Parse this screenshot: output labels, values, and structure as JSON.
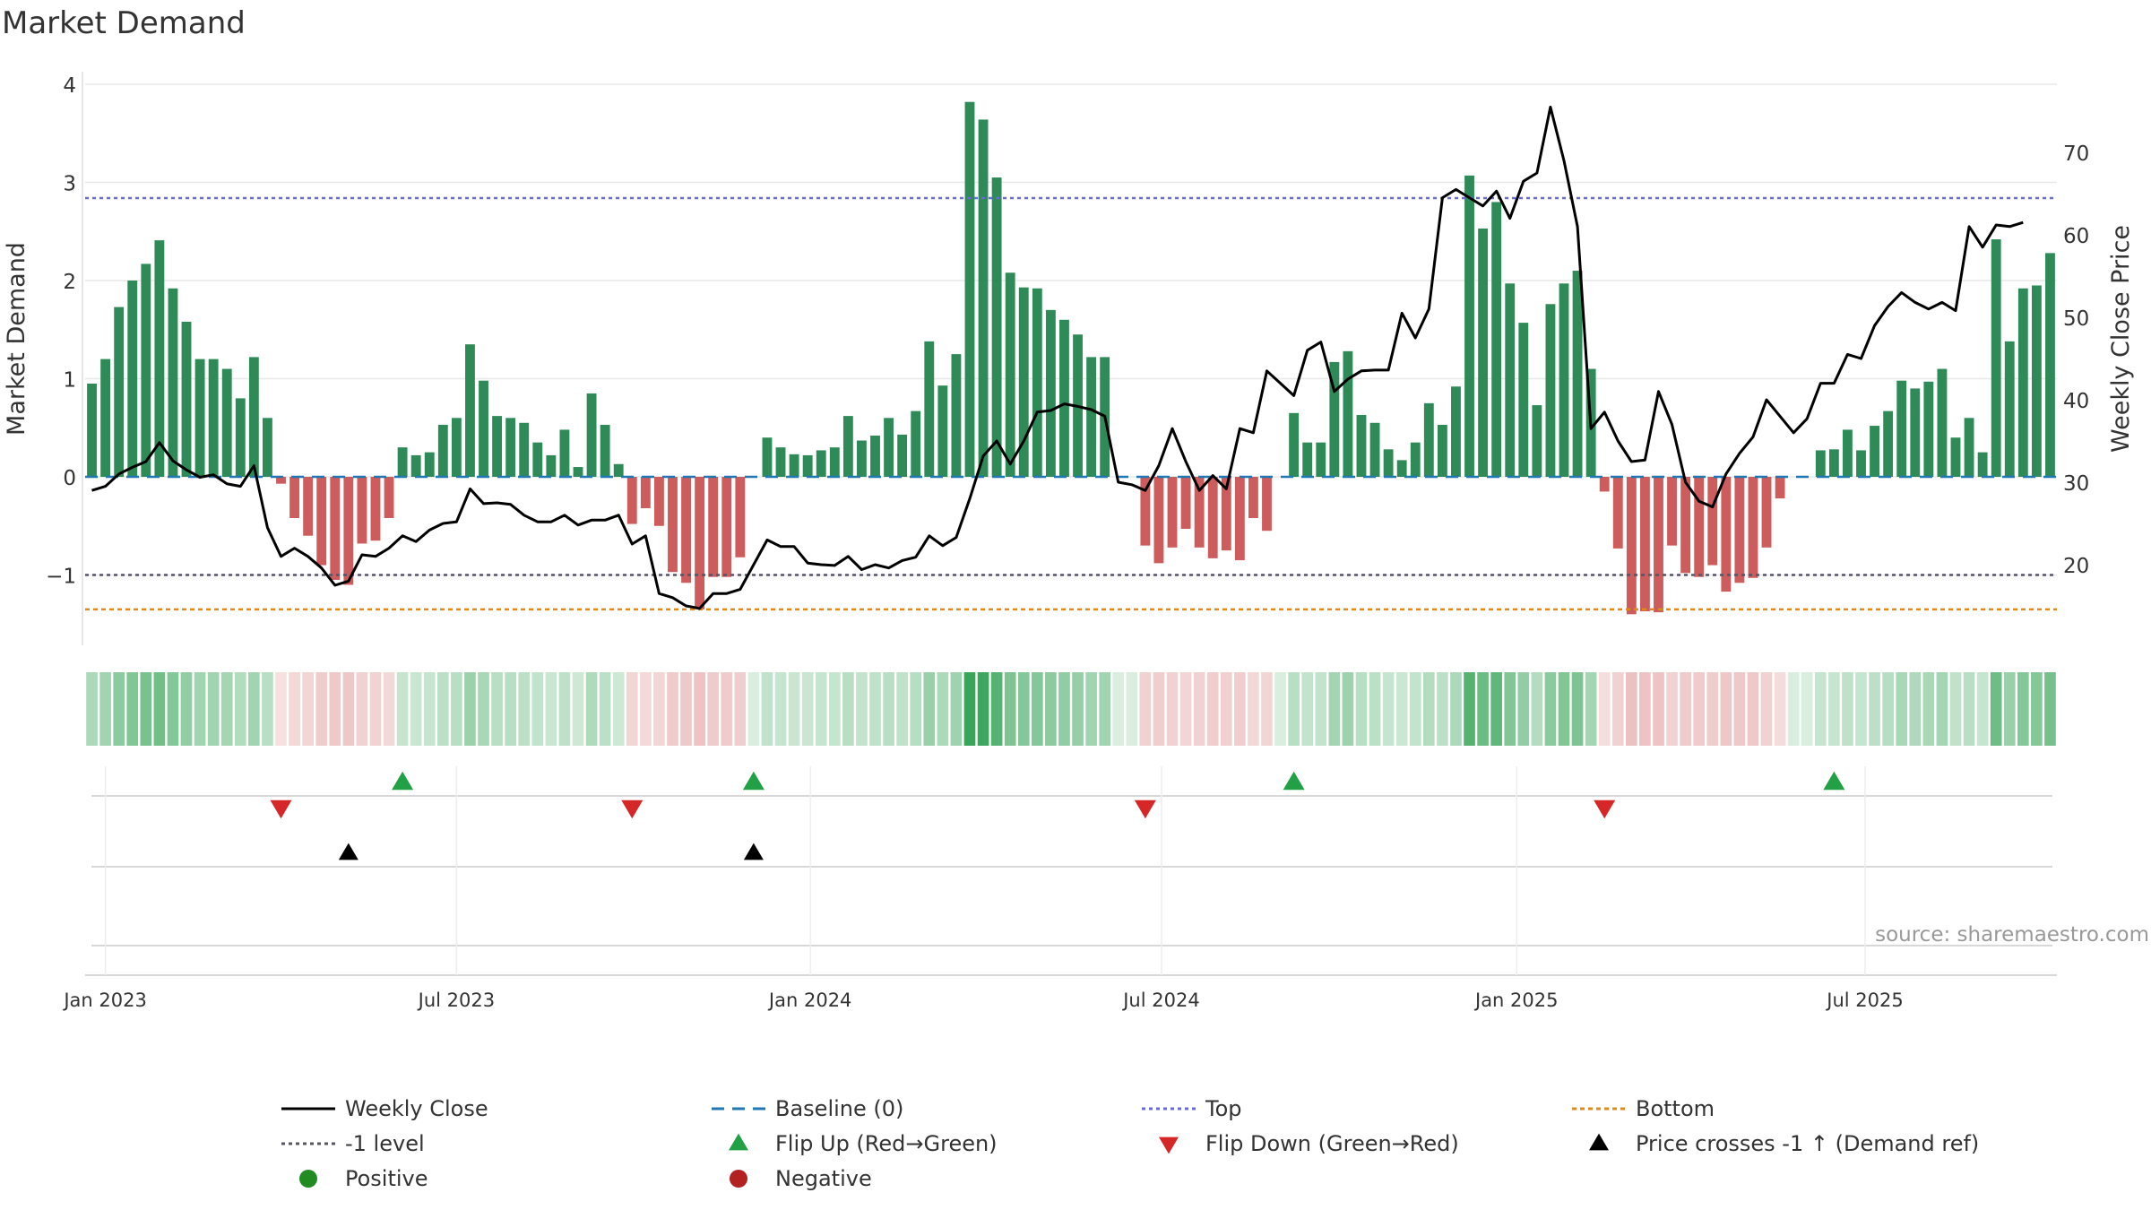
{
  "chart_data": {
    "type": "bar",
    "title": "Market Demand",
    "ylabel_left": "Market Demand",
    "ylabel_right": "Weekly Close Price",
    "source": "source: sharemaestro.com",
    "left_axis": {
      "range": [
        -1.75,
        4.1
      ],
      "ticks": [
        -1,
        0,
        1,
        2,
        3,
        4
      ],
      "tick_labels": [
        "−1",
        "0",
        "1",
        "2",
        "3",
        "4"
      ]
    },
    "right_axis": {
      "range": [
        10,
        79
      ],
      "ticks": [
        20,
        30,
        40,
        50,
        60,
        70
      ],
      "tick_labels": [
        "20",
        "30",
        "40",
        "50",
        "60",
        "70"
      ]
    },
    "x_ticks": [
      {
        "label": "Jan 2023",
        "week": 1.5
      },
      {
        "label": "Jul 2023",
        "week": 27.5
      },
      {
        "label": "Jan 2024",
        "week": 53.7
      },
      {
        "label": "Jul 2024",
        "week": 79.7
      },
      {
        "label": "Jan 2025",
        "week": 106
      },
      {
        "label": "Jul 2025",
        "week": 131.8
      }
    ],
    "reference_lines": {
      "top": 2.84,
      "minus_one_level": -1.0,
      "bottom": -1.35,
      "baseline": 0
    },
    "colors": {
      "positive_bar": "#2e8b57",
      "negative_bar": "#cd5c5c",
      "price_line": "#000000",
      "baseline": "#1f77b4",
      "top": "#6a6ad8",
      "minus_one": "#555566",
      "bottom": "#e08a1e",
      "flip_up": "#22a045",
      "flip_down": "#d62728",
      "cross": "#000000",
      "positive_dot": "#228b22",
      "negative_dot": "#b22222"
    },
    "demand": [
      0.95,
      1.2,
      1.73,
      2.0,
      2.17,
      2.41,
      1.92,
      1.58,
      1.2,
      1.2,
      1.1,
      0.8,
      1.22,
      0.6,
      -0.07,
      -0.42,
      -0.6,
      -0.9,
      -1.05,
      -1.1,
      -0.68,
      -0.65,
      -0.42,
      0.3,
      0.22,
      0.25,
      0.53,
      0.6,
      1.35,
      0.98,
      0.62,
      0.6,
      0.55,
      0.35,
      0.22,
      0.48,
      0.1,
      0.85,
      0.53,
      0.13,
      -0.48,
      -0.32,
      -0.5,
      -0.97,
      -1.08,
      -1.35,
      -1.02,
      -1.02,
      -0.82,
      0.0,
      0.4,
      0.3,
      0.23,
      0.22,
      0.27,
      0.3,
      0.62,
      0.37,
      0.42,
      0.6,
      0.43,
      0.67,
      1.38,
      0.93,
      1.25,
      3.82,
      3.64,
      3.05,
      2.08,
      1.93,
      1.92,
      1.7,
      1.6,
      1.45,
      1.22,
      1.22,
      0.0,
      0.0,
      -0.7,
      -0.88,
      -0.72,
      -0.53,
      -0.72,
      -0.83,
      -0.75,
      -0.85,
      -0.42,
      -0.55,
      0.0,
      0.65,
      0.35,
      0.35,
      1.17,
      1.28,
      0.63,
      0.55,
      0.28,
      0.17,
      0.35,
      0.75,
      0.53,
      0.92,
      3.07,
      2.53,
      2.8,
      1.97,
      1.57,
      0.73,
      1.76,
      1.97,
      2.1,
      1.1,
      -0.15,
      -0.73,
      -1.4,
      -1.37,
      -1.38,
      -0.7,
      -0.98,
      -1.02,
      -0.9,
      -1.17,
      -1.08,
      -1.03,
      -0.72,
      -0.22,
      0.0,
      0.0,
      0.27,
      0.28,
      0.48,
      0.27,
      0.52,
      0.67,
      0.98,
      0.9,
      0.97,
      1.1,
      0.4,
      0.6,
      0.25,
      2.42,
      1.38,
      1.92,
      1.95,
      2.28
    ],
    "weekly_close": [
      29.0,
      29.5,
      31.0,
      31.8,
      32.5,
      34.8,
      32.6,
      31.5,
      30.6,
      30.9,
      29.8,
      29.5,
      32.0,
      24.5,
      21.0,
      22.0,
      21.0,
      19.6,
      17.5,
      18.0,
      21.2,
      21.0,
      22.0,
      23.5,
      22.8,
      24.2,
      25.0,
      25.2,
      29.2,
      27.4,
      27.5,
      27.3,
      26.0,
      25.2,
      25.2,
      26.0,
      24.8,
      25.4,
      25.4,
      26.0,
      22.5,
      23.5,
      16.5,
      16.0,
      15.0,
      14.7,
      16.5,
      16.5,
      17.0,
      20.0,
      23.0,
      22.2,
      22.2,
      20.2,
      20.0,
      19.9,
      21.0,
      19.4,
      20.0,
      19.6,
      20.5,
      20.9,
      23.5,
      22.3,
      23.3,
      28.0,
      33.2,
      35.0,
      32.2,
      35.0,
      38.5,
      38.7,
      39.5,
      39.2,
      38.8,
      38.0,
      30.0,
      29.7,
      29.0,
      32.0,
      36.5,
      32.5,
      29.0,
      30.8,
      29.2,
      36.5,
      36.0,
      43.5,
      42.0,
      40.5,
      46.0,
      47.0,
      41.0,
      42.5,
      43.5,
      43.6,
      43.6,
      50.5,
      47.5,
      51.0,
      64.5,
      65.5,
      64.5,
      63.5,
      65.3,
      62.0,
      66.5,
      67.5,
      75.5,
      69.0,
      61.0,
      36.5,
      38.5,
      35.0,
      32.5,
      32.7,
      41.0,
      37.0,
      30.0,
      27.7,
      27.0,
      31.0,
      33.5,
      35.5,
      40.0,
      38.0,
      36.0,
      37.7,
      42.0,
      42.0,
      45.5,
      45.0,
      49.0,
      51.3,
      53.0,
      51.8,
      51.0,
      51.8,
      50.8,
      61.0,
      58.5,
      61.2,
      61.0,
      61.5
    ],
    "flip_up_weeks": [
      23,
      49,
      89,
      129
    ],
    "flip_down_weeks": [
      14,
      40,
      78,
      112
    ],
    "cross_weeks": [
      19,
      49
    ],
    "legend": [
      {
        "label": "Weekly Close",
        "style": "line-solid"
      },
      {
        "label": "Baseline (0)",
        "style": "line-dash-baseline"
      },
      {
        "label": "Top",
        "style": "line-dot-top"
      },
      {
        "label": "Bottom",
        "style": "line-dot-bottom"
      },
      {
        "label": "-1 level",
        "style": "line-dot-minus1"
      },
      {
        "label": "Flip Up (Red→Green)",
        "style": "tri-up-green"
      },
      {
        "label": "Flip Down (Green→Red)",
        "style": "tri-down-red"
      },
      {
        "label": "Price crosses -1 ↑ (Demand ref)",
        "style": "tri-up-black"
      },
      {
        "label": "Positive",
        "style": "dot-green"
      },
      {
        "label": "Negative",
        "style": "dot-red"
      }
    ]
  }
}
